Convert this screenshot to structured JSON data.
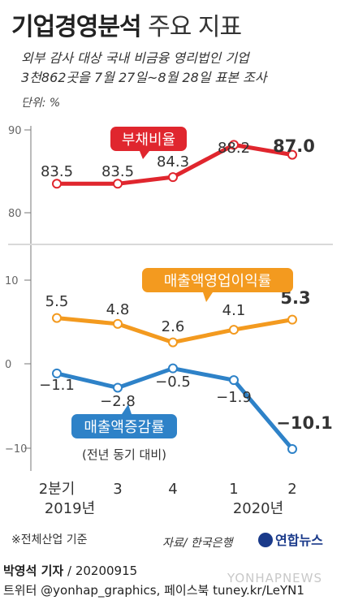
{
  "header": {
    "title_bold": "기업경영분석",
    "title_light": "주요 지표",
    "subtitle_line1": "외부 감사 대상 국내 비금융 영리법인 기업",
    "subtitle_line2": "3천862곳을 7월 27일~8월 28일 표본 조사",
    "unit": "단위: %"
  },
  "chart_data": {
    "type": "line",
    "categories": [
      "2분기",
      "3",
      "4",
      "1",
      "2"
    ],
    "year_labels": [
      "2019년",
      "2020년"
    ],
    "panels": [
      {
        "ylim": [
          80,
          90
        ],
        "yticks": [
          "90",
          "80"
        ],
        "series": [
          {
            "name": "부채비율",
            "values": [
              83.5,
              83.5,
              84.3,
              88.2,
              87.0
            ],
            "labels": [
              "83.5",
              "83.5",
              "84.3",
              "88.2",
              "87.0"
            ],
            "color": "#e0262e"
          }
        ]
      },
      {
        "ylim": [
          -10,
          10
        ],
        "yticks": [
          "10",
          "0",
          "−10"
        ],
        "series": [
          {
            "name": "매출액영업이익률",
            "values": [
              5.5,
              4.8,
              2.6,
              4.1,
              5.3
            ],
            "labels": [
              "5.5",
              "4.8",
              "2.6",
              "4.1",
              "5.3"
            ],
            "color": "#f39a1f"
          },
          {
            "name": "매출액증감률",
            "note": "(전년 동기 대비)",
            "values": [
              -1.1,
              -2.8,
              -0.5,
              -1.9,
              -10.1
            ],
            "labels": [
              "−1.1",
              "−2.8",
              "−0.5",
              "−1.9",
              "−10.1"
            ],
            "color": "#2e82c8"
          }
        ]
      }
    ]
  },
  "footer": {
    "footnote": "※전체산업 기준",
    "source": "자료/ 한국은행",
    "logo": "연합뉴스",
    "reporter": "박영석 기자",
    "date": "20200915",
    "social": "트위터 @yonhap_graphics, 페이스북 tuney.kr/LeYN1",
    "watermark": "YONHAPNEWS"
  }
}
